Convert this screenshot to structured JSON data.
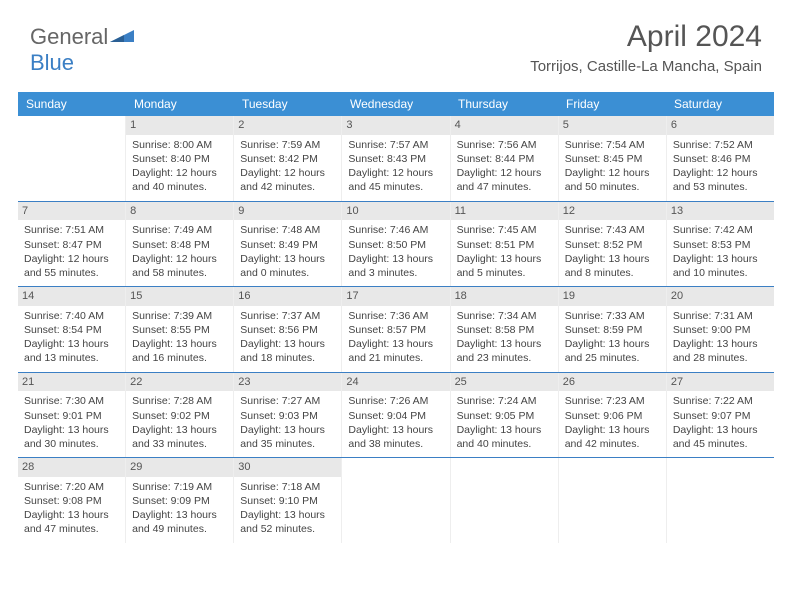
{
  "logo": {
    "part1": "General",
    "part2": "Blue"
  },
  "header": {
    "month": "April 2024",
    "location": "Torrijos, Castille-La Mancha, Spain"
  },
  "dayNames": [
    "Sunday",
    "Monday",
    "Tuesday",
    "Wednesday",
    "Thursday",
    "Friday",
    "Saturday"
  ],
  "colors": {
    "headerBg": "#3b8fd4",
    "headerText": "#ffffff",
    "weekBorder": "#3b7fc4",
    "dayNumBg": "#e8e8e8",
    "text": "#444444",
    "logoAccent": "#3b7fc4"
  },
  "weeks": [
    [
      {
        "empty": true
      },
      {
        "num": "1",
        "sunrise": "8:00 AM",
        "sunset": "8:40 PM",
        "daylight": "12 hours and 40 minutes."
      },
      {
        "num": "2",
        "sunrise": "7:59 AM",
        "sunset": "8:42 PM",
        "daylight": "12 hours and 42 minutes."
      },
      {
        "num": "3",
        "sunrise": "7:57 AM",
        "sunset": "8:43 PM",
        "daylight": "12 hours and 45 minutes."
      },
      {
        "num": "4",
        "sunrise": "7:56 AM",
        "sunset": "8:44 PM",
        "daylight": "12 hours and 47 minutes."
      },
      {
        "num": "5",
        "sunrise": "7:54 AM",
        "sunset": "8:45 PM",
        "daylight": "12 hours and 50 minutes."
      },
      {
        "num": "6",
        "sunrise": "7:52 AM",
        "sunset": "8:46 PM",
        "daylight": "12 hours and 53 minutes."
      }
    ],
    [
      {
        "num": "7",
        "sunrise": "7:51 AM",
        "sunset": "8:47 PM",
        "daylight": "12 hours and 55 minutes."
      },
      {
        "num": "8",
        "sunrise": "7:49 AM",
        "sunset": "8:48 PM",
        "daylight": "12 hours and 58 minutes."
      },
      {
        "num": "9",
        "sunrise": "7:48 AM",
        "sunset": "8:49 PM",
        "daylight": "13 hours and 0 minutes."
      },
      {
        "num": "10",
        "sunrise": "7:46 AM",
        "sunset": "8:50 PM",
        "daylight": "13 hours and 3 minutes."
      },
      {
        "num": "11",
        "sunrise": "7:45 AM",
        "sunset": "8:51 PM",
        "daylight": "13 hours and 5 minutes."
      },
      {
        "num": "12",
        "sunrise": "7:43 AM",
        "sunset": "8:52 PM",
        "daylight": "13 hours and 8 minutes."
      },
      {
        "num": "13",
        "sunrise": "7:42 AM",
        "sunset": "8:53 PM",
        "daylight": "13 hours and 10 minutes."
      }
    ],
    [
      {
        "num": "14",
        "sunrise": "7:40 AM",
        "sunset": "8:54 PM",
        "daylight": "13 hours and 13 minutes."
      },
      {
        "num": "15",
        "sunrise": "7:39 AM",
        "sunset": "8:55 PM",
        "daylight": "13 hours and 16 minutes."
      },
      {
        "num": "16",
        "sunrise": "7:37 AM",
        "sunset": "8:56 PM",
        "daylight": "13 hours and 18 minutes."
      },
      {
        "num": "17",
        "sunrise": "7:36 AM",
        "sunset": "8:57 PM",
        "daylight": "13 hours and 21 minutes."
      },
      {
        "num": "18",
        "sunrise": "7:34 AM",
        "sunset": "8:58 PM",
        "daylight": "13 hours and 23 minutes."
      },
      {
        "num": "19",
        "sunrise": "7:33 AM",
        "sunset": "8:59 PM",
        "daylight": "13 hours and 25 minutes."
      },
      {
        "num": "20",
        "sunrise": "7:31 AM",
        "sunset": "9:00 PM",
        "daylight": "13 hours and 28 minutes."
      }
    ],
    [
      {
        "num": "21",
        "sunrise": "7:30 AM",
        "sunset": "9:01 PM",
        "daylight": "13 hours and 30 minutes."
      },
      {
        "num": "22",
        "sunrise": "7:28 AM",
        "sunset": "9:02 PM",
        "daylight": "13 hours and 33 minutes."
      },
      {
        "num": "23",
        "sunrise": "7:27 AM",
        "sunset": "9:03 PM",
        "daylight": "13 hours and 35 minutes."
      },
      {
        "num": "24",
        "sunrise": "7:26 AM",
        "sunset": "9:04 PM",
        "daylight": "13 hours and 38 minutes."
      },
      {
        "num": "25",
        "sunrise": "7:24 AM",
        "sunset": "9:05 PM",
        "daylight": "13 hours and 40 minutes."
      },
      {
        "num": "26",
        "sunrise": "7:23 AM",
        "sunset": "9:06 PM",
        "daylight": "13 hours and 42 minutes."
      },
      {
        "num": "27",
        "sunrise": "7:22 AM",
        "sunset": "9:07 PM",
        "daylight": "13 hours and 45 minutes."
      }
    ],
    [
      {
        "num": "28",
        "sunrise": "7:20 AM",
        "sunset": "9:08 PM",
        "daylight": "13 hours and 47 minutes."
      },
      {
        "num": "29",
        "sunrise": "7:19 AM",
        "sunset": "9:09 PM",
        "daylight": "13 hours and 49 minutes."
      },
      {
        "num": "30",
        "sunrise": "7:18 AM",
        "sunset": "9:10 PM",
        "daylight": "13 hours and 52 minutes."
      },
      {
        "empty": true
      },
      {
        "empty": true
      },
      {
        "empty": true
      },
      {
        "empty": true
      }
    ]
  ],
  "labels": {
    "sunrise": "Sunrise:",
    "sunset": "Sunset:",
    "daylight": "Daylight:"
  }
}
